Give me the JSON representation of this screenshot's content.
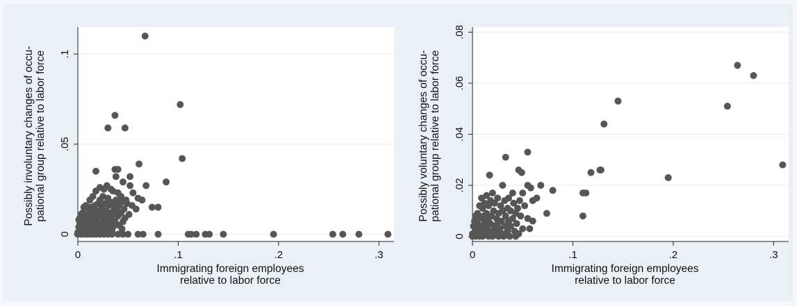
{
  "chart_data": [
    {
      "type": "scatter",
      "xlabel": [
        "Immigrating foreign employees",
        "relative to labor force"
      ],
      "ylabel": [
        "Possibly involuntary changes of occu-",
        "pational group relative to labor force"
      ],
      "xlim": [
        0,
        0.315
      ],
      "ylim": [
        -0.004,
        0.115
      ],
      "xticks": [
        {
          "v": 0,
          "label": "0"
        },
        {
          "v": 0.1,
          "label": ".1"
        },
        {
          "v": 0.2,
          "label": ".2"
        },
        {
          "v": 0.3,
          "label": ".3"
        }
      ],
      "yticks": [
        {
          "v": 0,
          "label": "0"
        },
        {
          "v": 0.05,
          "label": ".05"
        },
        {
          "v": 0.1,
          "label": ".1"
        }
      ],
      "grid": "horizontal",
      "marker_color": "#565656",
      "points": [
        [
          0.067,
          0.11
        ],
        [
          0.102,
          0.072
        ],
        [
          0.037,
          0.066
        ],
        [
          0.03,
          0.059
        ],
        [
          0.047,
          0.059
        ],
        [
          0.104,
          0.042
        ],
        [
          0.061,
          0.039
        ],
        [
          0.037,
          0.036
        ],
        [
          0.04,
          0.036
        ],
        [
          0.018,
          0.035
        ],
        [
          0.052,
          0.032
        ],
        [
          0.038,
          0.032
        ],
        [
          0.088,
          0.029
        ],
        [
          0.045,
          0.029
        ],
        [
          0.052,
          0.027
        ],
        [
          0.029,
          0.027
        ],
        [
          0.068,
          0.027
        ],
        [
          0.022,
          0.026
        ],
        [
          0.026,
          0.025
        ],
        [
          0.033,
          0.025
        ],
        [
          0.018,
          0.024
        ],
        [
          0.035,
          0.024
        ],
        [
          0.04,
          0.023
        ],
        [
          0.055,
          0.023
        ],
        [
          0.015,
          0.021
        ],
        [
          0.025,
          0.021
        ],
        [
          0.043,
          0.021
        ],
        [
          0.03,
          0.02
        ],
        [
          0.06,
          0.02
        ],
        [
          0.012,
          0.019
        ],
        [
          0.022,
          0.019
        ],
        [
          0.038,
          0.019
        ],
        [
          0.048,
          0.019
        ],
        [
          0.064,
          0.019
        ],
        [
          0.032,
          0.018
        ],
        [
          0.044,
          0.018
        ],
        [
          0.02,
          0.017
        ],
        [
          0.027,
          0.017
        ],
        [
          0.035,
          0.017
        ],
        [
          0.049,
          0.017
        ],
        [
          0.008,
          0.016
        ],
        [
          0.017,
          0.016
        ],
        [
          0.031,
          0.016
        ],
        [
          0.041,
          0.016
        ],
        [
          0.054,
          0.016
        ],
        [
          0.074,
          0.015
        ],
        [
          0.08,
          0.015
        ],
        [
          0.006,
          0.015
        ],
        [
          0.013,
          0.015
        ],
        [
          0.024,
          0.015
        ],
        [
          0.036,
          0.015
        ],
        [
          0.046,
          0.014
        ],
        [
          0.058,
          0.014
        ],
        [
          0.011,
          0.014
        ],
        [
          0.019,
          0.013
        ],
        [
          0.028,
          0.013
        ],
        [
          0.039,
          0.013
        ],
        [
          0.005,
          0.012
        ],
        [
          0.015,
          0.012
        ],
        [
          0.023,
          0.012
        ],
        [
          0.033,
          0.012
        ],
        [
          0.043,
          0.012
        ],
        [
          0.051,
          0.011
        ],
        [
          0.003,
          0.011
        ],
        [
          0.009,
          0.011
        ],
        [
          0.018,
          0.011
        ],
        [
          0.027,
          0.011
        ],
        [
          0.036,
          0.011
        ],
        [
          0.004,
          0.01
        ],
        [
          0.012,
          0.01
        ],
        [
          0.021,
          0.01
        ],
        [
          0.03,
          0.01
        ],
        [
          0.04,
          0.01
        ],
        [
          0.047,
          0.009
        ],
        [
          0.002,
          0.009
        ],
        [
          0.007,
          0.009
        ],
        [
          0.015,
          0.009
        ],
        [
          0.024,
          0.009
        ],
        [
          0.033,
          0.009
        ],
        [
          0.001,
          0.008
        ],
        [
          0.006,
          0.008
        ],
        [
          0.011,
          0.008
        ],
        [
          0.019,
          0.008
        ],
        [
          0.028,
          0.008
        ],
        [
          0.037,
          0.007
        ],
        [
          0.045,
          0.007
        ],
        [
          0.003,
          0.007
        ],
        [
          0.009,
          0.007
        ],
        [
          0.016,
          0.007
        ],
        [
          0.025,
          0.006
        ],
        [
          0.032,
          0.006
        ],
        [
          0.002,
          0.006
        ],
        [
          0.005,
          0.005
        ],
        [
          0.013,
          0.005
        ],
        [
          0.021,
          0.005
        ],
        [
          0.029,
          0.005
        ],
        [
          0.041,
          0.005
        ],
        [
          0.001,
          0.004
        ],
        [
          0.008,
          0.004
        ],
        [
          0.017,
          0.004
        ],
        [
          0.026,
          0.004
        ],
        [
          0.035,
          0.004
        ],
        [
          0.004,
          0.003
        ],
        [
          0.011,
          0.003
        ],
        [
          0.019,
          0.003
        ],
        [
          0.03,
          0.003
        ],
        [
          0.044,
          0.003
        ],
        [
          0.002,
          0.002
        ],
        [
          0.007,
          0.002
        ],
        [
          0.014,
          0.002
        ],
        [
          0.023,
          0.002
        ],
        [
          0.034,
          0.002
        ],
        [
          0.0,
          0.001
        ],
        [
          0.005,
          0.001
        ],
        [
          0.012,
          0.001
        ],
        [
          0.027,
          0.001
        ],
        [
          0.0,
          0.0
        ],
        [
          0.003,
          0.0
        ],
        [
          0.006,
          0.0
        ],
        [
          0.009,
          0.0
        ],
        [
          0.012,
          0.0
        ],
        [
          0.015,
          0.0
        ],
        [
          0.018,
          0.0
        ],
        [
          0.022,
          0.0
        ],
        [
          0.026,
          0.0
        ],
        [
          0.03,
          0.0
        ],
        [
          0.034,
          0.0
        ],
        [
          0.04,
          0.0
        ],
        [
          0.045,
          0.0
        ],
        [
          0.05,
          0.0
        ],
        [
          0.06,
          0.0
        ],
        [
          0.065,
          0.0
        ],
        [
          0.08,
          0.0
        ],
        [
          0.11,
          0.0
        ],
        [
          0.113,
          0.0
        ],
        [
          0.118,
          0.0
        ],
        [
          0.127,
          0.0
        ],
        [
          0.131,
          0.0
        ],
        [
          0.145,
          0.0
        ],
        [
          0.195,
          0.0
        ],
        [
          0.254,
          0.0
        ],
        [
          0.264,
          0.0
        ],
        [
          0.28,
          0.0
        ],
        [
          0.309,
          0.0
        ]
      ]
    },
    {
      "type": "scatter",
      "xlabel": [
        "Immigrating foreign employees",
        "relative to labor force"
      ],
      "ylabel": [
        "Possibly voluntary changes of occu-",
        "pational group relative to labor force"
      ],
      "xlim": [
        0,
        0.315
      ],
      "ylim": [
        -0.002,
        0.082
      ],
      "xticks": [
        {
          "v": 0,
          "label": "0"
        },
        {
          "v": 0.1,
          "label": ".1"
        },
        {
          "v": 0.2,
          "label": ".2"
        },
        {
          "v": 0.3,
          "label": ".3"
        }
      ],
      "yticks": [
        {
          "v": 0,
          "label": "0"
        },
        {
          "v": 0.02,
          "label": ".02"
        },
        {
          "v": 0.04,
          "label": ".04"
        },
        {
          "v": 0.06,
          "label": ".06"
        },
        {
          "v": 0.08,
          "label": ".08"
        }
      ],
      "grid": "horizontal",
      "marker_color": "#565656",
      "points": [
        [
          0.264,
          0.067
        ],
        [
          0.28,
          0.063
        ],
        [
          0.145,
          0.053
        ],
        [
          0.254,
          0.051
        ],
        [
          0.131,
          0.044
        ],
        [
          0.309,
          0.028
        ],
        [
          0.128,
          0.026
        ],
        [
          0.127,
          0.026
        ],
        [
          0.118,
          0.025
        ],
        [
          0.195,
          0.023
        ],
        [
          0.11,
          0.017
        ],
        [
          0.113,
          0.017
        ],
        [
          0.11,
          0.008
        ],
        [
          0.055,
          0.033
        ],
        [
          0.033,
          0.031
        ],
        [
          0.046,
          0.026
        ],
        [
          0.049,
          0.025
        ],
        [
          0.017,
          0.024
        ],
        [
          0.068,
          0.02
        ],
        [
          0.055,
          0.02
        ],
        [
          0.03,
          0.02
        ],
        [
          0.058,
          0.019
        ],
        [
          0.08,
          0.018
        ],
        [
          0.02,
          0.017
        ],
        [
          0.04,
          0.017
        ],
        [
          0.05,
          0.017
        ],
        [
          0.014,
          0.016
        ],
        [
          0.064,
          0.015
        ],
        [
          0.036,
          0.015
        ],
        [
          0.009,
          0.015
        ],
        [
          0.025,
          0.015
        ],
        [
          0.018,
          0.014
        ],
        [
          0.047,
          0.014
        ],
        [
          0.06,
          0.014
        ],
        [
          0.032,
          0.014
        ],
        [
          0.012,
          0.013
        ],
        [
          0.022,
          0.013
        ],
        [
          0.041,
          0.013
        ],
        [
          0.028,
          0.012
        ],
        [
          0.052,
          0.012
        ],
        [
          0.007,
          0.012
        ],
        [
          0.016,
          0.012
        ],
        [
          0.035,
          0.011
        ],
        [
          0.045,
          0.011
        ],
        [
          0.01,
          0.011
        ],
        [
          0.021,
          0.01
        ],
        [
          0.03,
          0.01
        ],
        [
          0.038,
          0.01
        ],
        [
          0.074,
          0.009
        ],
        [
          0.005,
          0.009
        ],
        [
          0.014,
          0.009
        ],
        [
          0.026,
          0.009
        ],
        [
          0.043,
          0.009
        ],
        [
          0.003,
          0.008
        ],
        [
          0.011,
          0.008
        ],
        [
          0.019,
          0.008
        ],
        [
          0.033,
          0.008
        ],
        [
          0.048,
          0.008
        ],
        [
          0.007,
          0.007
        ],
        [
          0.016,
          0.007
        ],
        [
          0.024,
          0.007
        ],
        [
          0.04,
          0.007
        ],
        [
          0.055,
          0.007
        ],
        [
          0.002,
          0.006
        ],
        [
          0.012,
          0.006
        ],
        [
          0.029,
          0.006
        ],
        [
          0.036,
          0.006
        ],
        [
          0.06,
          0.006
        ],
        [
          0.005,
          0.005
        ],
        [
          0.018,
          0.005
        ],
        [
          0.025,
          0.005
        ],
        [
          0.044,
          0.005
        ],
        [
          0.009,
          0.004
        ],
        [
          0.015,
          0.004
        ],
        [
          0.032,
          0.004
        ],
        [
          0.038,
          0.004
        ],
        [
          0.001,
          0.004
        ],
        [
          0.022,
          0.004
        ],
        [
          0.006,
          0.003
        ],
        [
          0.013,
          0.003
        ],
        [
          0.027,
          0.003
        ],
        [
          0.05,
          0.003
        ],
        [
          0.057,
          0.003
        ],
        [
          0.003,
          0.003
        ],
        [
          0.019,
          0.002
        ],
        [
          0.035,
          0.002
        ],
        [
          0.042,
          0.002
        ],
        [
          0.008,
          0.002
        ],
        [
          0.011,
          0.002
        ],
        [
          0.024,
          0.002
        ],
        [
          0.0,
          0.001
        ],
        [
          0.004,
          0.001
        ],
        [
          0.014,
          0.001
        ],
        [
          0.03,
          0.001
        ],
        [
          0.046,
          0.001
        ],
        [
          0.0,
          0.0
        ],
        [
          0.003,
          0.0
        ],
        [
          0.007,
          0.0
        ],
        [
          0.01,
          0.0
        ],
        [
          0.016,
          0.0
        ],
        [
          0.02,
          0.0
        ],
        [
          0.026,
          0.0
        ],
        [
          0.031,
          0.0
        ],
        [
          0.037,
          0.0
        ],
        [
          0.043,
          0.0
        ]
      ]
    }
  ]
}
